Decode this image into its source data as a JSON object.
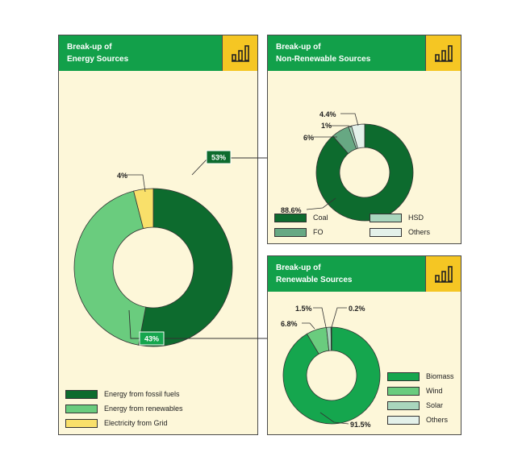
{
  "colors": {
    "dark_green": "#0d6b2e",
    "light_green": "#6acc7e",
    "yellow": "#f9e06a",
    "mid_green": "#67a883",
    "pale_green": "#a9d6bd",
    "pale": "#e4f1ea",
    "bright_green": "#15a64e",
    "header_green": "#12a04a",
    "panel_bg": "#fdf7d9",
    "icon_bg": "#f5c623"
  },
  "panels": {
    "energy": {
      "title_line1": "Break-up of",
      "title_line2": "Energy Sources",
      "icon": "bar-chart-icon"
    },
    "nonrenewable": {
      "title_line1": "Break-up of",
      "title_line2": "Non-Renewable Sources",
      "icon": "bar-chart-icon"
    },
    "renewable": {
      "title_line1": "Break-up of",
      "title_line2": "Renewable Sources",
      "icon": "bar-chart-icon"
    }
  },
  "chart_data": [
    {
      "type": "pie",
      "title": "Break-up of Energy Sources",
      "categories": [
        "Energy from fossil fuels",
        "Energy from renewables",
        "Electricity from Grid"
      ],
      "values": [
        53,
        43,
        4
      ],
      "labels": [
        "53%",
        "43%",
        "4%"
      ],
      "colors": [
        "#0d6b2e",
        "#6acc7e",
        "#f9e06a"
      ],
      "legend": "bottom-left"
    },
    {
      "type": "pie",
      "title": "Break-up of Non-Renewable Sources",
      "categories": [
        "Coal",
        "FO",
        "HSD",
        "Others"
      ],
      "values": [
        88.6,
        6,
        1,
        4.4
      ],
      "labels": [
        "88.6%",
        "6%",
        "1%",
        "4.4%"
      ],
      "colors": [
        "#0d6b2e",
        "#67a883",
        "#a9d6bd",
        "#e4f1ea"
      ],
      "legend": "bottom"
    },
    {
      "type": "pie",
      "title": "Break-up of Renewable Sources",
      "categories": [
        "Biomass",
        "Wind",
        "Solar",
        "Others"
      ],
      "values": [
        91.5,
        6.8,
        1.5,
        0.2
      ],
      "labels": [
        "91.5%",
        "6.8%",
        "1.5%",
        "0.2%"
      ],
      "colors": [
        "#15a64e",
        "#6acc7e",
        "#a9d6bd",
        "#e4f1ea"
      ],
      "legend": "right"
    }
  ]
}
